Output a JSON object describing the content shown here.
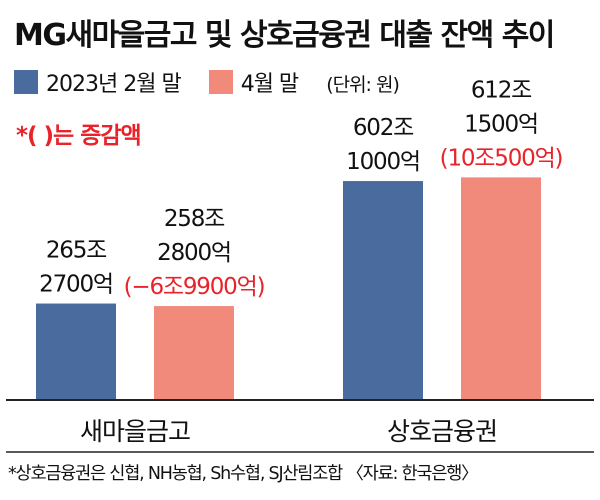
{
  "title": "MG새마을금고 및 상호금융권 대출 잔액 추이",
  "legend": {
    "items": [
      {
        "label": "2023년 2월 말",
        "color": "#4a6b9e"
      },
      {
        "label": "4월 말",
        "color": "#f28a7c"
      }
    ],
    "unit": "(단위: 원)"
  },
  "note": "*(  )는 증감액",
  "footnote": "*상호금융권은 신협, NH농협, Sh수협, SJ산림조합 〈자료: 한국은행〉",
  "chart_data": {
    "type": "bar",
    "categories": [
      "새마을금고",
      "상호금융권"
    ],
    "series": [
      {
        "name": "2023년 2월 말",
        "values": [
          2652700,
          6021000
        ],
        "labels": [
          [
            "265조",
            "2700억"
          ],
          [
            "602조",
            "1000억"
          ]
        ]
      },
      {
        "name": "4월 말",
        "values": [
          2582800,
          6121500
        ],
        "labels": [
          [
            "258조",
            "2800억"
          ],
          [
            "612조",
            "1500억"
          ]
        ],
        "changes": [
          "(−6조9900억)",
          "(10조500억)"
        ]
      }
    ],
    "value_unit": "억원",
    "ylim": [
      0,
      11000000
    ],
    "grid": false,
    "legend_position": "top-left"
  }
}
